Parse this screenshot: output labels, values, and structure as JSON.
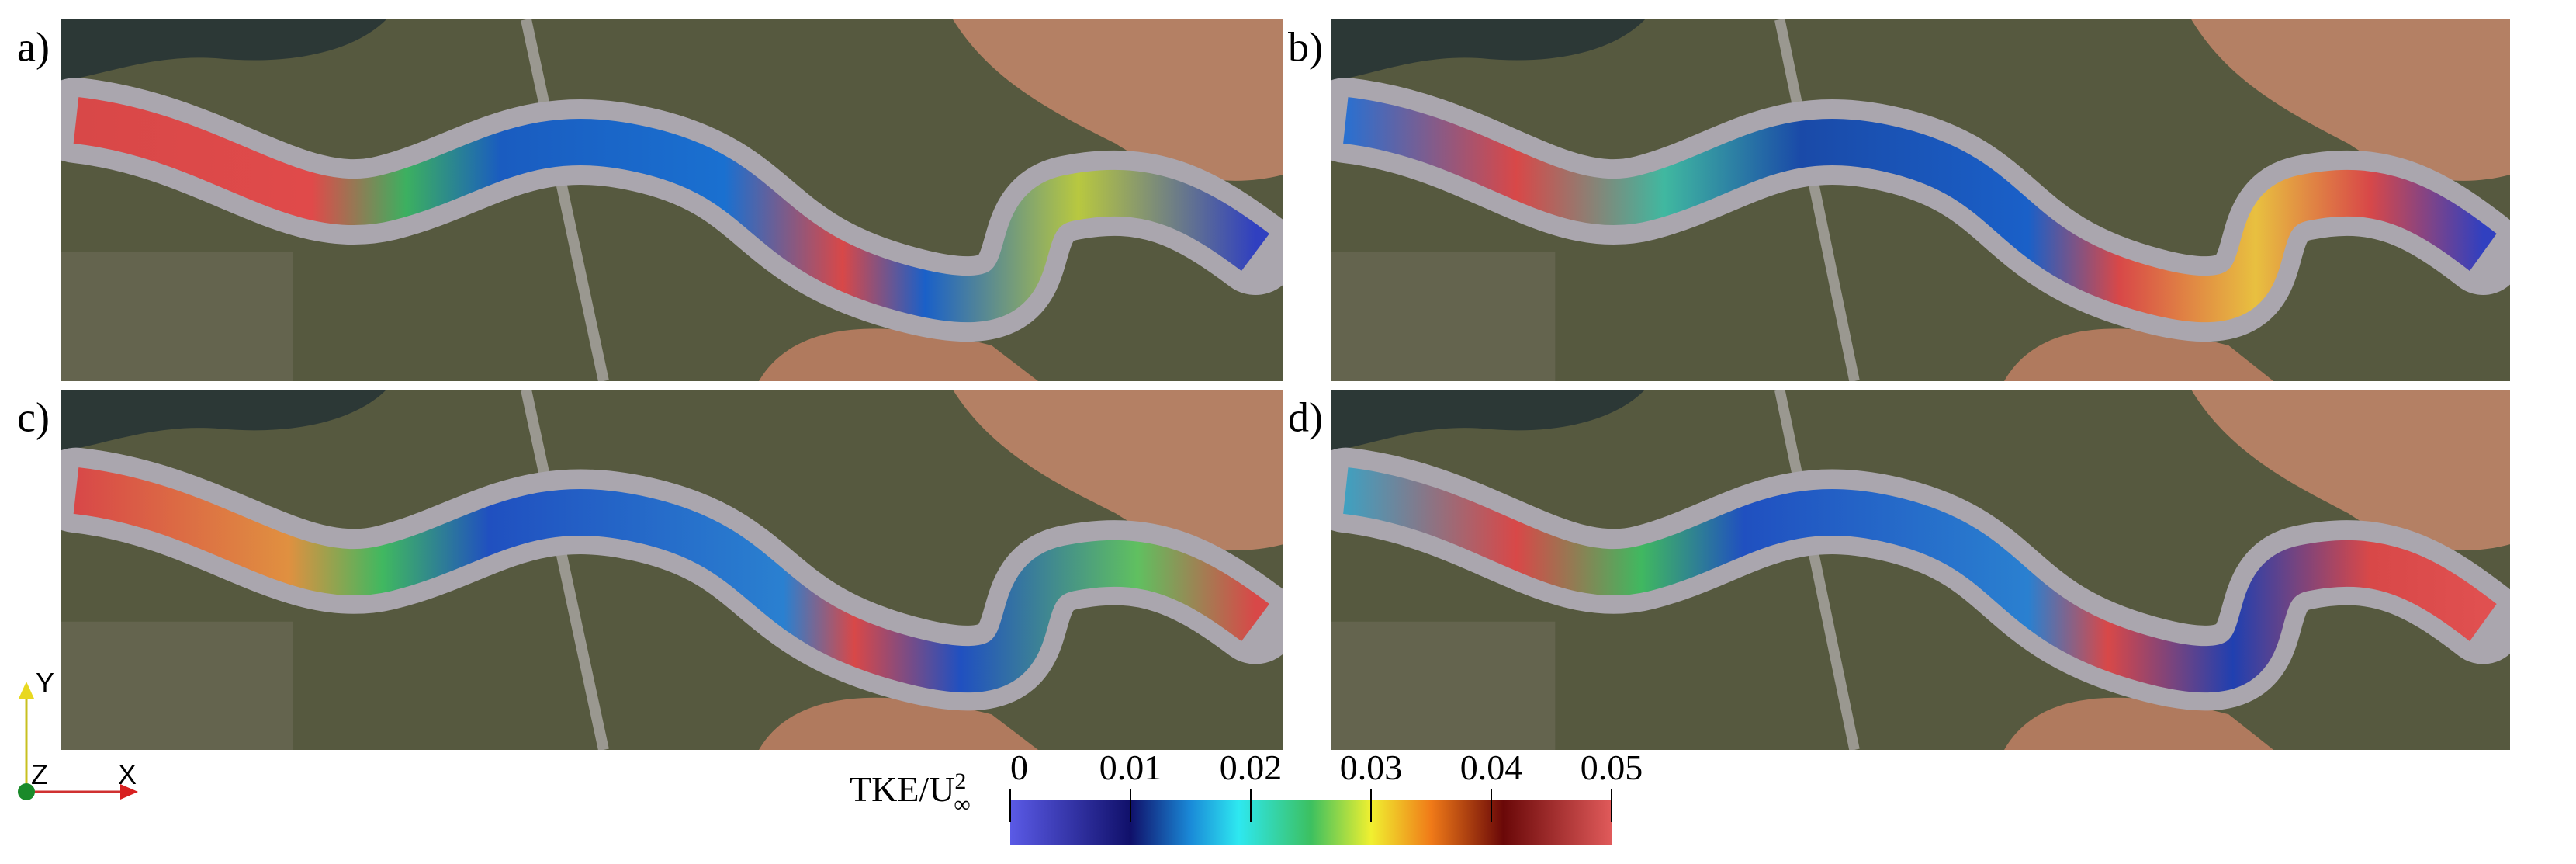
{
  "panels": [
    {
      "label": "a)"
    },
    {
      "label": "b)"
    },
    {
      "label": "c)"
    },
    {
      "label": "d)"
    }
  ],
  "colorbar": {
    "title": "TKE/U",
    "title_sup": "2",
    "title_sub": "∞",
    "lim": [
      0,
      0.05
    ],
    "ticks": [
      0,
      0.01,
      0.02,
      0.03,
      0.04,
      0.05
    ]
  },
  "axes_triad": {
    "y": "Y",
    "z": "Z",
    "x": "X"
  }
}
